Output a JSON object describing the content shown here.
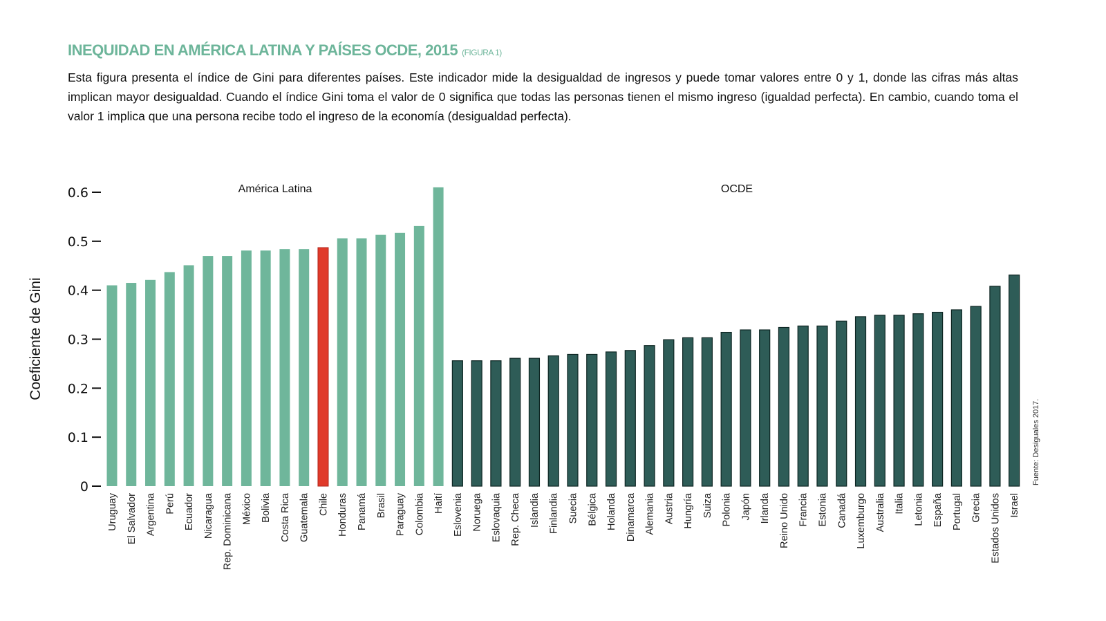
{
  "header": {
    "title": "INEQUIDAD EN AMÉRICA LATINA Y PAÍSES OCDE, 2015",
    "figure_tag": "(FIGURA 1)",
    "description": "Esta figura presenta el índice de Gini para diferentes países. Este indicador mide la desigualdad de ingresos y puede tomar valores entre 0 y 1, donde las cifras más altas implican mayor desigualdad. Cuando el índice Gini toma el valor de 0 significa que todas las personas tienen el mismo ingreso (igualdad perfecta). En cambio, cuando toma el valor 1 implica que una persona recibe todo el ingreso de la economía (desigualdad perfecta)."
  },
  "source": "Fuente: Desiguales 2017.",
  "colors": {
    "latam": "#6fb69b",
    "highlight": "#e03a2a",
    "ocde": "#2e5c57",
    "ocde_edge": "#0d2522",
    "title": "#6db59a"
  },
  "chart_data": {
    "type": "bar",
    "ylabel": "Coeficiente de Gini",
    "xlabel": "",
    "ylim": [
      0,
      0.6
    ],
    "yticks": [
      "0",
      "0.1",
      "0.2",
      "0.3",
      "0.4",
      "0.5",
      "0.6"
    ],
    "grid": false,
    "groups": [
      {
        "name": "América Latina",
        "categories": [
          "Uruguay",
          "El Salvador",
          "Argentina",
          "Perú",
          "Ecuador",
          "Nicaragua",
          "Rep. Dominicana",
          "México",
          "Bolivia",
          "Costa Rica",
          "Guatemala",
          "Chile",
          "Honduras",
          "Panamá",
          "Brasil",
          "Paraguay",
          "Colombia",
          "Haití"
        ],
        "values": [
          0.41,
          0.415,
          0.421,
          0.437,
          0.451,
          0.47,
          0.47,
          0.481,
          0.481,
          0.484,
          0.484,
          0.487,
          0.506,
          0.506,
          0.513,
          0.517,
          0.531,
          0.61
        ],
        "highlight": "Chile"
      },
      {
        "name": "OCDE",
        "categories": [
          "Eslovenia",
          "Noruega",
          "Eslovaquia",
          "Rep. Checa",
          "Islandia",
          "Finlandia",
          "Suecia",
          "Bélgica",
          "Holanda",
          "Dinamarca",
          "Alemania",
          "Austria",
          "Hungría",
          "Suiza",
          "Polonia",
          "Japón",
          "Irlanda",
          "Reino Unido",
          "Francia",
          "Estonia",
          "Canadá",
          "Luxemburgo",
          "Australia",
          "Italia",
          "Letonia",
          "España",
          "Portugal",
          "Grecia",
          "Estados Unidos",
          "Israel"
        ],
        "values": [
          0.256,
          0.256,
          0.256,
          0.261,
          0.261,
          0.266,
          0.269,
          0.269,
          0.274,
          0.277,
          0.287,
          0.299,
          0.303,
          0.303,
          0.314,
          0.319,
          0.319,
          0.324,
          0.327,
          0.327,
          0.337,
          0.346,
          0.349,
          0.349,
          0.352,
          0.355,
          0.36,
          0.367,
          0.408,
          0.431
        ]
      }
    ]
  }
}
